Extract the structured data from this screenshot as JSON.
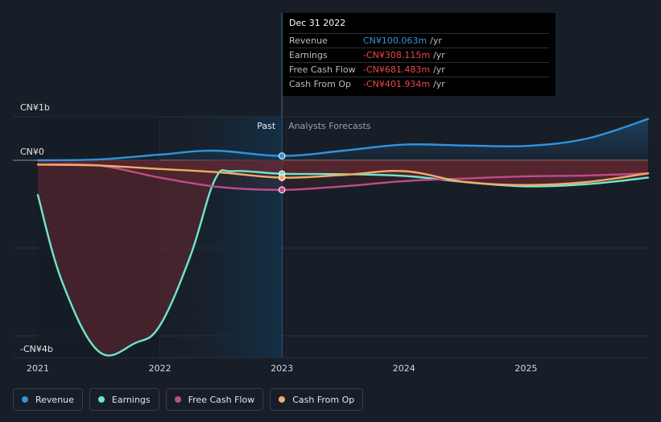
{
  "chart_data": {
    "type": "line",
    "x_ticks": [
      "2021",
      "2022",
      "2023",
      "2024",
      "2025"
    ],
    "y_labels": [
      "CN¥1b",
      "CN¥0",
      "-CN¥4b"
    ],
    "ylim": [
      -4.3,
      1.0
    ],
    "region_labels": {
      "past": "Past",
      "forecast": "Analysts Forecasts"
    },
    "divider_x": 2023.0,
    "series": [
      {
        "name": "Revenue",
        "color": "#2f93e0",
        "x": [
          2021.0,
          2021.5,
          2022.0,
          2022.45,
          2023.0,
          2023.5,
          2024.0,
          2024.5,
          2025.0,
          2025.5,
          2026.0
        ],
        "y": [
          0.0,
          0.02,
          0.13,
          0.22,
          0.1,
          0.22,
          0.36,
          0.34,
          0.33,
          0.5,
          0.95
        ]
      },
      {
        "name": "Earnings",
        "color": "#6ee6cf",
        "x": [
          2021.0,
          2021.2,
          2021.5,
          2021.8,
          2022.0,
          2022.25,
          2022.45,
          2022.6,
          2023.0,
          2023.5,
          2024.0,
          2024.5,
          2025.0,
          2025.5,
          2026.0
        ],
        "y": [
          -0.8,
          -2.8,
          -4.4,
          -4.2,
          -3.8,
          -2.2,
          -0.45,
          -0.25,
          -0.31,
          -0.32,
          -0.36,
          -0.5,
          -0.6,
          -0.55,
          -0.4
        ]
      },
      {
        "name": "Free Cash Flow",
        "color": "#c04c8a",
        "x": [
          2021.0,
          2021.5,
          2022.0,
          2022.5,
          2023.0,
          2023.5,
          2024.0,
          2024.5,
          2025.0,
          2025.5,
          2026.0
        ],
        "y": [
          -0.1,
          -0.12,
          -0.4,
          -0.62,
          -0.68,
          -0.6,
          -0.48,
          -0.42,
          -0.37,
          -0.35,
          -0.3
        ]
      },
      {
        "name": "Cash From Op",
        "color": "#f0ac66",
        "x": [
          2021.0,
          2021.5,
          2022.0,
          2022.5,
          2023.0,
          2023.5,
          2024.0,
          2024.5,
          2025.0,
          2025.5,
          2026.0
        ],
        "y": [
          -0.1,
          -0.12,
          -0.2,
          -0.28,
          -0.4,
          -0.34,
          -0.25,
          -0.5,
          -0.57,
          -0.5,
          -0.3
        ]
      }
    ]
  },
  "tooltip": {
    "title": "Dec 31 2022",
    "rows": [
      {
        "label": "Revenue",
        "value": "CN¥100.063m",
        "unit": "/yr",
        "color": "#2f93e0"
      },
      {
        "label": "Earnings",
        "value": "-CN¥308.115m",
        "unit": "/yr",
        "color": "#e84a4a"
      },
      {
        "label": "Free Cash Flow",
        "value": "-CN¥681.483m",
        "unit": "/yr",
        "color": "#e84a4a"
      },
      {
        "label": "Cash From Op",
        "value": "-CN¥401.934m",
        "unit": "/yr",
        "color": "#e84a4a"
      }
    ]
  },
  "legend": [
    {
      "label": "Revenue",
      "color": "#2f93e0"
    },
    {
      "label": "Earnings",
      "color": "#6ee6cf"
    },
    {
      "label": "Free Cash Flow",
      "color": "#c04c8a"
    },
    {
      "label": "Cash From Op",
      "color": "#f0ac66"
    }
  ]
}
